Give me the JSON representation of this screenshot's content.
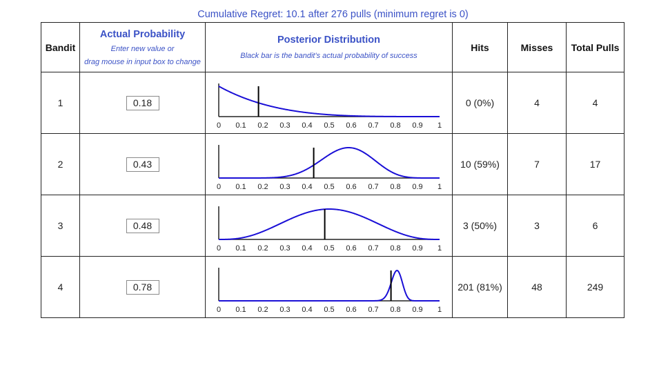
{
  "header": {
    "regret_text": "Cumulative Regret: 10.1 after 276 pulls (minimum regret is 0)",
    "col_bandit": "Bandit",
    "col_prob_title": "Actual Probability",
    "col_prob_sub1": "Enter new value or",
    "col_prob_sub2": "drag mouse in input box to change",
    "col_post_title": "Posterior Distribution",
    "col_post_sub": "Black bar is the bandit's actual probability of success",
    "col_hits": "Hits",
    "col_misses": "Misses",
    "col_total": "Total Pulls"
  },
  "rows": [
    {
      "bandit": "1",
      "prob": "0.18",
      "hits": "0 (0%)",
      "misses": "4",
      "total": "4"
    },
    {
      "bandit": "2",
      "prob": "0.43",
      "hits": "10 (59%)",
      "misses": "7",
      "total": "17"
    },
    {
      "bandit": "3",
      "prob": "0.48",
      "hits": "3 (50%)",
      "misses": "3",
      "total": "6"
    },
    {
      "bandit": "4",
      "prob": "0.78",
      "hits": "201 (81%)",
      "misses": "48",
      "total": "249"
    }
  ],
  "chart_data": [
    {
      "type": "line",
      "bandit": "1",
      "distribution": "beta",
      "alpha": 1,
      "beta": 5,
      "actual_probability": 0.18,
      "xlim": [
        0,
        1
      ],
      "x_ticks": [
        "0",
        "0.1",
        "0.2",
        "0.3",
        "0.4",
        "0.5",
        "0.6",
        "0.7",
        "0.8",
        "0.9",
        "1"
      ],
      "line_color": "#1a0fd6",
      "bar_color": "#000000"
    },
    {
      "type": "line",
      "bandit": "2",
      "distribution": "beta",
      "alpha": 11,
      "beta": 8,
      "actual_probability": 0.43,
      "xlim": [
        0,
        1
      ],
      "x_ticks": [
        "0",
        "0.1",
        "0.2",
        "0.3",
        "0.4",
        "0.5",
        "0.6",
        "0.7",
        "0.8",
        "0.9",
        "1"
      ],
      "line_color": "#1a0fd6",
      "bar_color": "#000000"
    },
    {
      "type": "line",
      "bandit": "3",
      "distribution": "beta",
      "alpha": 4,
      "beta": 4,
      "actual_probability": 0.48,
      "xlim": [
        0,
        1
      ],
      "x_ticks": [
        "0",
        "0.1",
        "0.2",
        "0.3",
        "0.4",
        "0.5",
        "0.6",
        "0.7",
        "0.8",
        "0.9",
        "1"
      ],
      "line_color": "#1a0fd6",
      "bar_color": "#000000"
    },
    {
      "type": "line",
      "bandit": "4",
      "distribution": "beta",
      "alpha": 202,
      "beta": 49,
      "actual_probability": 0.78,
      "xlim": [
        0,
        1
      ],
      "x_ticks": [
        "0",
        "0.1",
        "0.2",
        "0.3",
        "0.4",
        "0.5",
        "0.6",
        "0.7",
        "0.8",
        "0.9",
        "1"
      ],
      "line_color": "#1a0fd6",
      "bar_color": "#000000"
    }
  ]
}
